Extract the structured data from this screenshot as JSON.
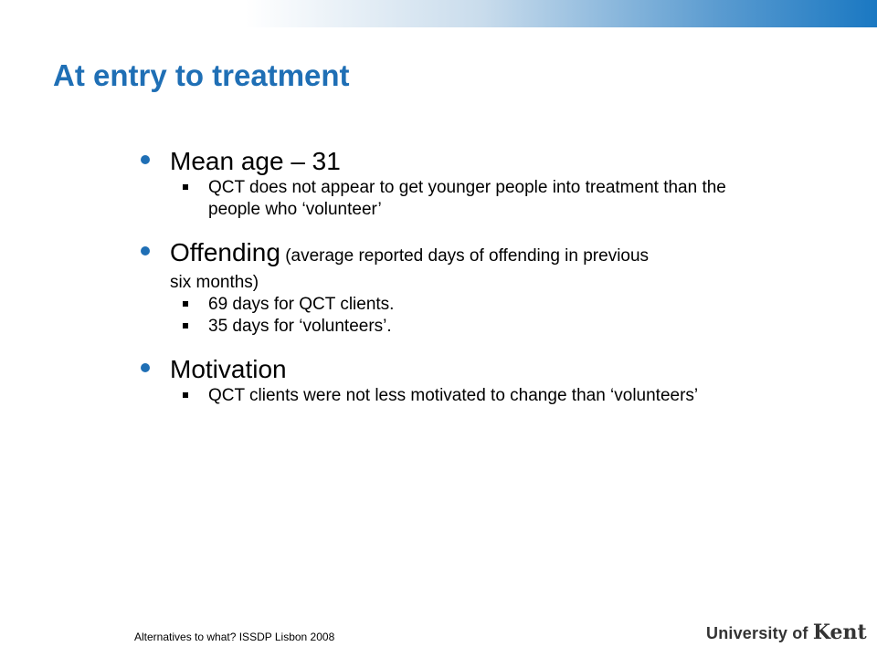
{
  "slide": {
    "title": "At entry to treatment",
    "bullets": [
      {
        "heading": "Mean age – 31",
        "sub": [
          "QCT does not appear to get younger people into treatment than the people who ‘volunteer’"
        ]
      },
      {
        "heading": "Offending",
        "paren": " (average reported days of offending in previous",
        "paren_cont": "six months)",
        "sub": [
          "69 days for QCT clients.",
          "35 days for ‘volunteers’."
        ]
      },
      {
        "heading": "Motivation",
        "sub": [
          "QCT clients were not less motivated to change than ‘volunteers’"
        ]
      }
    ]
  },
  "footer": {
    "text": "Alternatives to what? ISSDP Lisbon 2008",
    "logo_prefix": "University of ",
    "logo_name": "Kent"
  },
  "colors": {
    "accent": "#1f6fb5",
    "band_end": "#1a78c2"
  }
}
